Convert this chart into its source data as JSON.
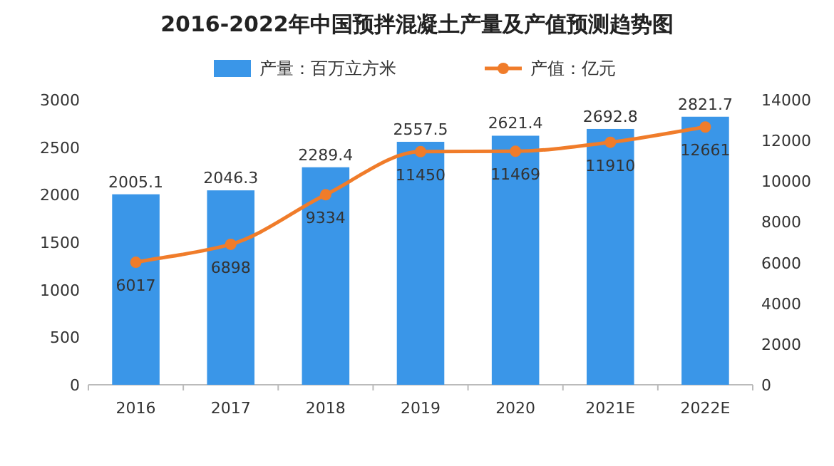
{
  "chart_data": {
    "type": "bar",
    "title": "2016-2022年中国预拌混凝土产量及产值预测趋势图",
    "categories": [
      "2016",
      "2017",
      "2018",
      "2019",
      "2020",
      "2021E",
      "2022E"
    ],
    "series": [
      {
        "name": "产量：百万立方米",
        "color": "#3a96e8",
        "values": [
          2005.1,
          2046.3,
          2289.4,
          2557.5,
          2621.4,
          2692.8,
          2821.7
        ]
      },
      {
        "name": "产值：亿元",
        "type": "line",
        "axis": "y2",
        "color": "#f07c2a",
        "values": [
          6017,
          6898,
          9334,
          11450,
          11469,
          11910,
          12661
        ]
      }
    ],
    "ylim": [
      0,
      3000
    ],
    "yticks": [
      0,
      500,
      1000,
      1500,
      2000,
      2500,
      3000
    ],
    "y2lim": [
      0,
      14000
    ],
    "y2ticks": [
      0,
      2000,
      4000,
      6000,
      8000,
      10000,
      12000,
      14000
    ],
    "data_labels": true,
    "legend": "top",
    "marker": "circle",
    "line_style": "solid"
  }
}
